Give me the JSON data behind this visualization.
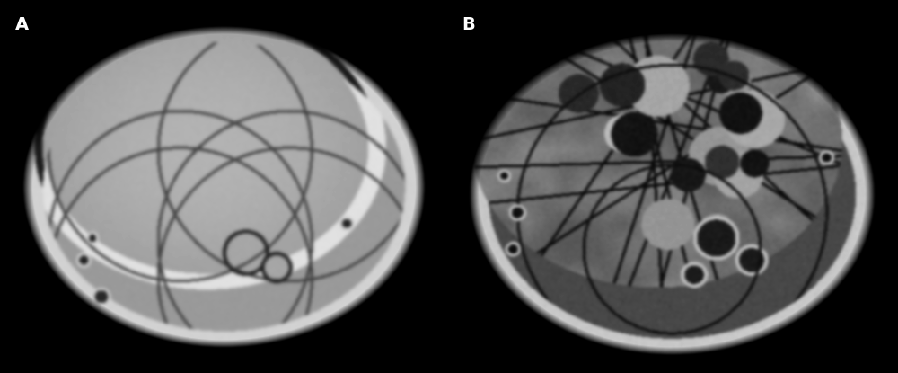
{
  "background_color": "#000000",
  "label_A": "A",
  "label_B": "B",
  "label_color": "#ffffff",
  "label_fontsize": 14,
  "label_fontweight": "bold",
  "fig_width": 10.0,
  "fig_height": 4.15,
  "dpi": 100
}
